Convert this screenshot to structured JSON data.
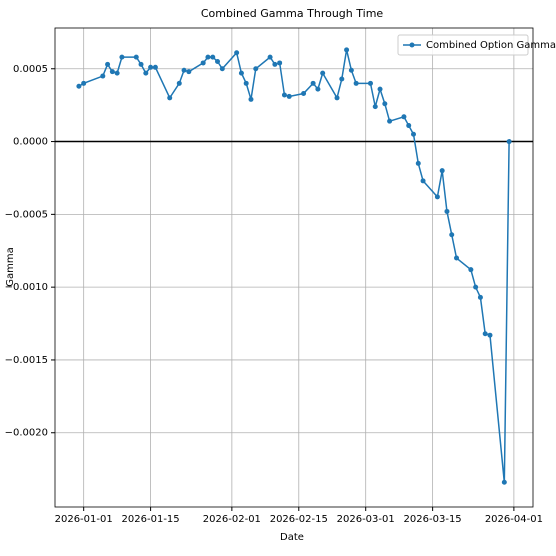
{
  "chart_data": {
    "type": "line",
    "title": "Combined Gamma Through Time",
    "x_label": "Date",
    "y_label": "Gamma",
    "x": [
      "2025-12-31",
      "2026-01-01",
      "2026-01-05",
      "2026-01-06",
      "2026-01-07",
      "2026-01-08",
      "2026-01-09",
      "2026-01-12",
      "2026-01-13",
      "2026-01-14",
      "2026-01-15",
      "2026-01-16",
      "2026-01-19",
      "2026-01-21",
      "2026-01-22",
      "2026-01-23",
      "2026-01-26",
      "2026-01-27",
      "2026-01-28",
      "2026-01-29",
      "2026-01-30",
      "2026-02-02",
      "2026-02-03",
      "2026-02-04",
      "2026-02-05",
      "2026-02-06",
      "2026-02-09",
      "2026-02-10",
      "2026-02-11",
      "2026-02-12",
      "2026-02-13",
      "2026-02-16",
      "2026-02-18",
      "2026-02-19",
      "2026-02-20",
      "2026-02-23",
      "2026-02-24",
      "2026-02-25",
      "2026-02-26",
      "2026-02-27",
      "2026-03-02",
      "2026-03-03",
      "2026-03-04",
      "2026-03-05",
      "2026-03-06",
      "2026-03-09",
      "2026-03-10",
      "2026-03-11",
      "2026-03-12",
      "2026-03-13",
      "2026-03-16",
      "2026-03-17",
      "2026-03-18",
      "2026-03-19",
      "2026-03-20",
      "2026-03-23",
      "2026-03-24",
      "2026-03-25",
      "2026-03-26",
      "2026-03-27",
      "2026-03-30",
      "2026-03-31"
    ],
    "series": [
      {
        "name": "Combined Option Gamma",
        "color": "#1f77b4",
        "values": [
          0.00038,
          0.0004,
          0.00045,
          0.00053,
          0.00048,
          0.00047,
          0.00058,
          0.00058,
          0.00053,
          0.00047,
          0.00051,
          0.00051,
          0.0003,
          0.0004,
          0.00049,
          0.00048,
          0.00054,
          0.00058,
          0.00058,
          0.00055,
          0.0005,
          0.00061,
          0.00047,
          0.0004,
          0.00029,
          0.0005,
          0.00058,
          0.00053,
          0.00054,
          0.00032,
          0.00031,
          0.00033,
          0.0004,
          0.00036,
          0.00047,
          0.0003,
          0.00043,
          0.00063,
          0.00049,
          0.0004,
          0.0004,
          0.00024,
          0.00036,
          0.00026,
          0.00014,
          0.00017,
          0.00011,
          5e-05,
          -0.00015,
          -0.00027,
          -0.00038,
          -0.0002,
          -0.00048,
          -0.00064,
          -0.0008,
          -0.00088,
          -0.001,
          -0.00107,
          -0.00132,
          -0.00133,
          -0.00234,
          0
        ]
      }
    ],
    "xlim": [
      "2025-12-26",
      "2026-04-05"
    ],
    "xticks": [
      "2026-01-01",
      "2026-01-15",
      "2026-02-01",
      "2026-02-15",
      "2026-03-01",
      "2026-03-15",
      "2026-04-01"
    ],
    "ylim": [
      -0.00251,
      0.00078
    ],
    "yticks": [
      {
        "value": 0.0005,
        "label": "0.0005"
      },
      {
        "value": 0,
        "label": "0.0000"
      },
      {
        "value": -0.0005,
        "label": "−0.0005"
      },
      {
        "value": -0.001,
        "label": "−0.0010"
      },
      {
        "value": -0.0015,
        "label": "−0.0015"
      },
      {
        "value": -0.002,
        "label": "−0.0020"
      }
    ],
    "hline": 0,
    "grid": true,
    "legend": "upper right"
  }
}
